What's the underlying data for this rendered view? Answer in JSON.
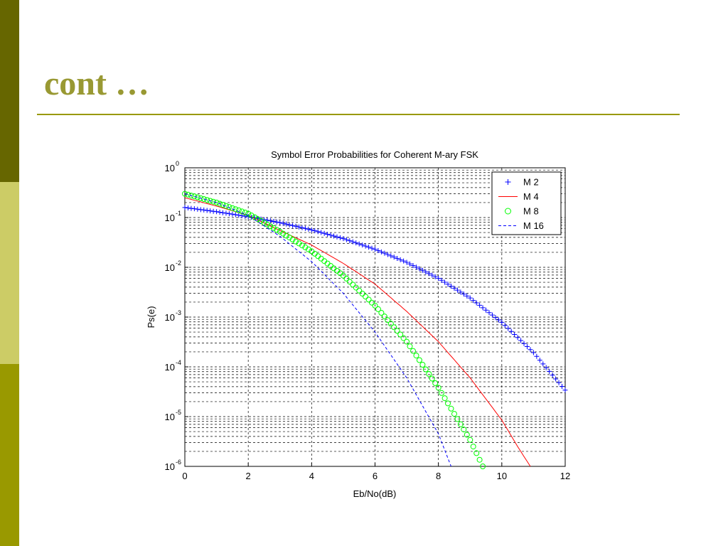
{
  "slide": {
    "title": "cont …",
    "band_colors": [
      "#666600",
      "#cccc66",
      "#999900"
    ],
    "accent_color": "#999900",
    "title_color": "#999933"
  },
  "chart_data": {
    "type": "line",
    "title": "Symbol Error Probabilities for Coherent M-ary FSK",
    "xlabel": "Eb/No(dB)",
    "ylabel": "Ps(e)",
    "xlim": [
      0,
      12
    ],
    "ylim": [
      1e-06,
      1
    ],
    "yscale": "log",
    "grid": true,
    "legend_position": "top-right",
    "x_ticks": [
      "0",
      "2",
      "4",
      "6",
      "8",
      "10",
      "12"
    ],
    "y_ticks": [
      {
        "base": "10",
        "exp": "0"
      },
      {
        "base": "10",
        "exp": "-1"
      },
      {
        "base": "10",
        "exp": "-2"
      },
      {
        "base": "10",
        "exp": "-3"
      },
      {
        "base": "10",
        "exp": "-4"
      },
      {
        "base": "10",
        "exp": "-5"
      },
      {
        "base": "10",
        "exp": "-6"
      }
    ],
    "series": [
      {
        "name": "M 2",
        "color": "#0000ff",
        "marker": "plus",
        "line_style": "none",
        "x": [
          0,
          1,
          2,
          3,
          4,
          5,
          6,
          7,
          8,
          9,
          10,
          11,
          12
        ],
        "y": [
          0.159,
          0.131,
          0.104,
          0.0791,
          0.0565,
          0.0377,
          0.023,
          0.0126,
          0.006,
          0.00242,
          0.000783,
          0.000193,
          3.4e-05
        ]
      },
      {
        "name": "M 4",
        "color": "#ff0000",
        "marker": "none",
        "line_style": "solid",
        "x": [
          0,
          1,
          2,
          3,
          4,
          5,
          6,
          7,
          8,
          9,
          10,
          10.5,
          10.9
        ],
        "y": [
          0.25,
          0.17,
          0.11,
          0.055,
          0.028,
          0.012,
          0.0046,
          0.0013,
          0.00032,
          6e-05,
          8.5e-06,
          2.5e-06,
          1e-06
        ]
      },
      {
        "name": "M 8",
        "color": "#00ff00",
        "marker": "circle",
        "line_style": "none",
        "x": [
          0,
          1,
          2,
          3,
          4,
          5,
          6,
          7,
          8,
          9,
          9.4
        ],
        "y": [
          0.3,
          0.2,
          0.12,
          0.052,
          0.021,
          0.0068,
          0.0017,
          0.00032,
          3.8e-05,
          3.4e-06,
          1e-06
        ]
      },
      {
        "name": "M 16",
        "color": "#0000ff",
        "marker": "none",
        "line_style": "dashed",
        "x": [
          0,
          1,
          2,
          3,
          4,
          5,
          6,
          7,
          8,
          8.4
        ],
        "y": [
          0.3,
          0.2,
          0.11,
          0.042,
          0.013,
          0.003,
          0.0005,
          6e-05,
          4.5e-06,
          1e-06
        ]
      }
    ]
  }
}
